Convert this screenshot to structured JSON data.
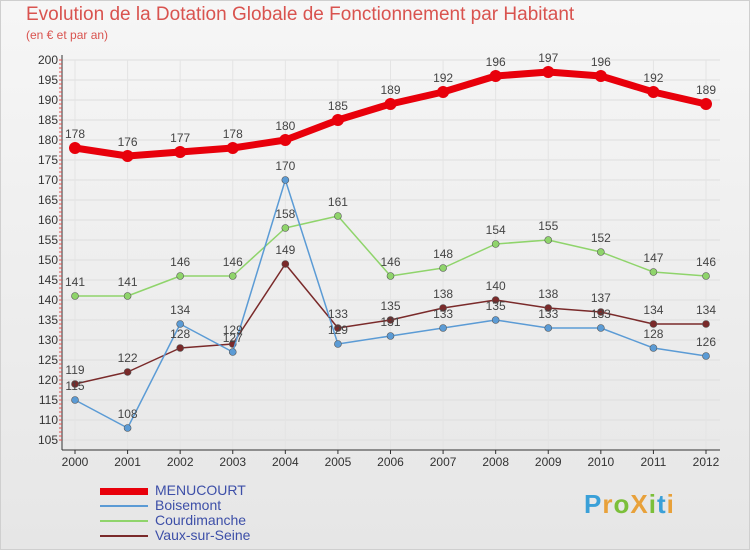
{
  "title": "Evolution de la Dotation Globale de Fonctionnement par Habitant",
  "subtitle": "(en € et par an)",
  "logo": {
    "text": "ProXiti",
    "letters": [
      "P",
      "r",
      "o",
      "X",
      "i",
      "t",
      "i"
    ],
    "colors": [
      "#3aa0d8",
      "#e8a13a",
      "#7bbf3a",
      "#e8a13a",
      "#7bbf3a",
      "#3aa0d8",
      "#e8a13a"
    ]
  },
  "chart_data": {
    "type": "line",
    "title": "Evolution de la Dotation Globale de Fonctionnement par Habitant",
    "subtitle": "(en € et par an)",
    "xlabel": "",
    "ylabel": "",
    "x": [
      "2000",
      "2001",
      "2002",
      "2003",
      "2004",
      "2005",
      "2006",
      "2007",
      "2008",
      "2009",
      "2010",
      "2011",
      "2012"
    ],
    "ylim": [
      105,
      200
    ],
    "yticks": [
      105,
      110,
      115,
      120,
      125,
      130,
      135,
      140,
      145,
      150,
      155,
      160,
      165,
      170,
      175,
      180,
      185,
      190,
      195,
      200
    ],
    "series": [
      {
        "name": "MENUCOURT",
        "color": "#e8000b",
        "values": [
          178,
          176,
          177,
          178,
          180,
          185,
          189,
          192,
          196,
          197,
          196,
          192,
          189
        ]
      },
      {
        "name": "Boisemont",
        "color": "#5b9bd5",
        "values": [
          115,
          108,
          134,
          127,
          170,
          129,
          131,
          133,
          135,
          133,
          133,
          128,
          126
        ]
      },
      {
        "name": "Courdimanche",
        "color": "#8fd46b",
        "values": [
          141,
          141,
          146,
          146,
          158,
          161,
          146,
          148,
          154,
          155,
          152,
          147,
          146
        ]
      },
      {
        "name": "Vaux-sur-Seine",
        "color": "#7a2a2a",
        "values": [
          119,
          122,
          128,
          129,
          149,
          133,
          135,
          138,
          140,
          138,
          137,
          134,
          134
        ]
      }
    ],
    "labels": [
      {
        "series": 0,
        "text": [
          "178",
          "176",
          "177",
          "178",
          "180",
          "185",
          "189",
          "192",
          "196",
          "197",
          "196",
          "192",
          "189"
        ]
      },
      {
        "series": 1,
        "text": [
          "115",
          "108",
          "134",
          "127",
          "170",
          "129",
          "131",
          "133",
          "135",
          "133",
          "133",
          "128",
          "126"
        ]
      },
      {
        "series": 2,
        "text": [
          "141",
          "141",
          "146",
          "146",
          "158",
          "161",
          "146",
          "148",
          "154",
          "155",
          "152",
          "147",
          "146"
        ]
      },
      {
        "series": 3,
        "text": [
          "119",
          "122",
          "128",
          "129",
          "149",
          "133",
          "135",
          "138",
          "140",
          "138",
          "137",
          "134",
          "134"
        ]
      }
    ],
    "legend_position": "bottom-left"
  }
}
